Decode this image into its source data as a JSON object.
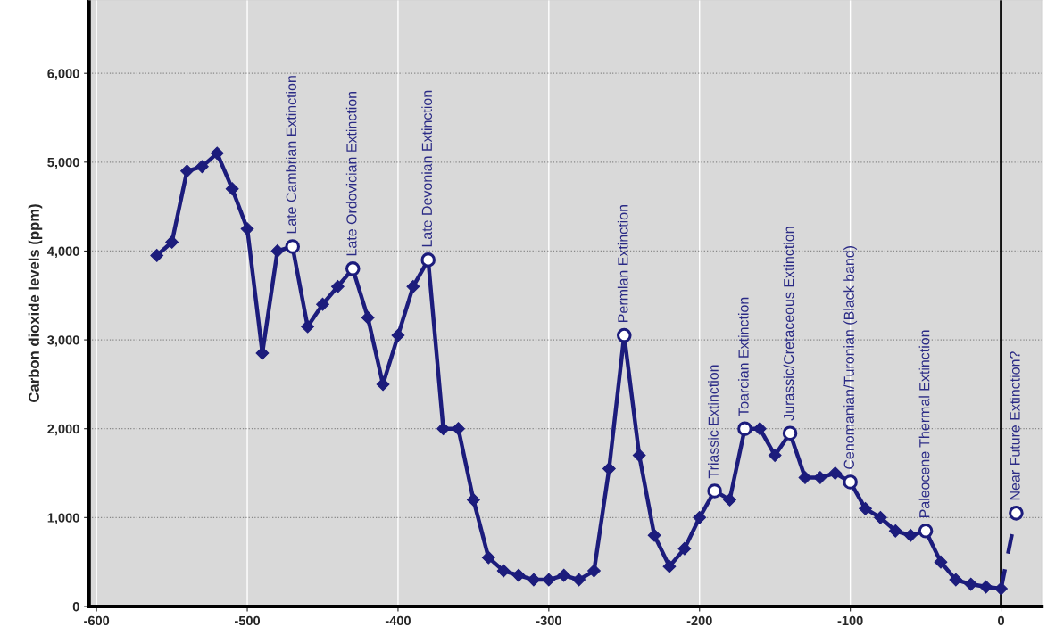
{
  "chart_data": {
    "type": "line",
    "ylabel": "Carbon dioxide levels (ppm)",
    "xlim": [
      -605,
      27
    ],
    "ylim": [
      0,
      6825
    ],
    "xticks": [
      -600,
      -500,
      -400,
      -300,
      -200,
      -100,
      0
    ],
    "yticks": [
      {
        "value": 0,
        "label": "0"
      },
      {
        "value": 1000,
        "label": "1,000"
      },
      {
        "value": 2000,
        "label": "2,000"
      },
      {
        "value": 3000,
        "label": "3,000"
      },
      {
        "value": 4000,
        "label": "4,000"
      },
      {
        "value": 5000,
        "label": "5,000"
      },
      {
        "value": 6000,
        "label": "6,000"
      }
    ],
    "grid": true,
    "legend": false,
    "series": [
      {
        "color": "#1c1c7c",
        "marker": "diamond",
        "line_style": "solid",
        "x": [
          -560,
          -550,
          -540,
          -530,
          -520,
          -510,
          -500,
          -490,
          -480,
          -470,
          -460,
          -450,
          -440,
          -430,
          -420,
          -410,
          -400,
          -390,
          -380,
          -370,
          -360,
          -350,
          -340,
          -330,
          -320,
          -310,
          -300,
          -290,
          -280,
          -270,
          -260,
          -250,
          -240,
          -230,
          -220,
          -210,
          -200,
          -190,
          -180,
          -170,
          -160,
          -150,
          -140,
          -130,
          -120,
          -110,
          -100,
          -90,
          -80,
          -70,
          -60,
          -50,
          -40,
          -30,
          -20,
          -10,
          0
        ],
        "values": [
          3950,
          4100,
          4900,
          4950,
          5100,
          4700,
          4250,
          2850,
          4000,
          4050,
          3150,
          3400,
          3600,
          3800,
          3250,
          2500,
          3050,
          3600,
          3900,
          2000,
          2000,
          1200,
          550,
          400,
          350,
          300,
          300,
          350,
          300,
          400,
          1550,
          3050,
          1700,
          800,
          450,
          650,
          1000,
          1300,
          1200,
          2000,
          2000,
          1700,
          1950,
          1450,
          1450,
          1500,
          1400,
          1100,
          1000,
          850,
          800,
          850,
          500,
          300,
          250,
          220,
          200
        ]
      },
      {
        "color": "#1c1c7c",
        "marker": "none",
        "line_style": "dashed",
        "x": [
          0,
          10
        ],
        "values": [
          200,
          1050
        ]
      },
      {
        "type": "scatter",
        "color": "#1c1c7c",
        "marker": "circle",
        "x": [
          -470,
          -430,
          -380,
          -250,
          -190,
          -170,
          -140,
          -100,
          -50,
          10
        ],
        "values": [
          4050,
          3800,
          3900,
          3050,
          1300,
          2000,
          1950,
          1400,
          850,
          1050
        ]
      }
    ],
    "ref_lines": [
      {
        "axis": "x",
        "value": 0,
        "color": "#000000",
        "line_style": "solid"
      }
    ],
    "annotations": [
      {
        "text": "Late Cambrian Extinction",
        "x": -470,
        "y": 4050
      },
      {
        "text": "Late Ordovician Extinction",
        "x": -430,
        "y": 3800
      },
      {
        "text": "Late Devonian Extinction",
        "x": -380,
        "y": 3900
      },
      {
        "text": "Permlan Extinction",
        "x": -250,
        "y": 3050
      },
      {
        "text": "Triassic Extinction",
        "x": -190,
        "y": 1300
      },
      {
        "text": "Toarcian Extinction",
        "x": -170,
        "y": 2000
      },
      {
        "text": "Jurassic/Cretaceous Extinction",
        "x": -140,
        "y": 1950
      },
      {
        "text": "Cenomanian/Turonian (Black band)",
        "x": -100,
        "y": 1400
      },
      {
        "text": "Paleocene Thermal Extinction",
        "x": -50,
        "y": 850
      },
      {
        "text": "Near Future Extinction?",
        "x": 10,
        "y": 1050
      }
    ]
  }
}
